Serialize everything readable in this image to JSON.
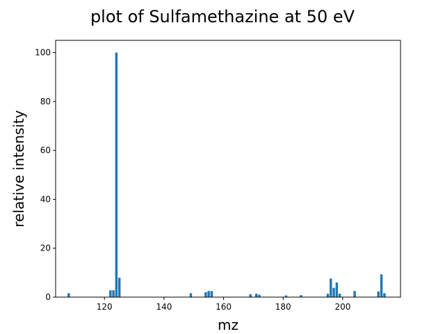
{
  "chart_data": {
    "type": "bar",
    "title": "plot of Sulfamethazine at 50 eV",
    "xlabel": "mz",
    "ylabel": "relative intensity",
    "xlim": [
      103.6,
      219.4
    ],
    "ylim": [
      0,
      105
    ],
    "xticks": [
      "120",
      "140",
      "160",
      "180",
      "200"
    ],
    "yticks": [
      "0",
      "20",
      "40",
      "60",
      "80",
      "100"
    ],
    "bar_color": "#1f77b4",
    "grid": false,
    "series": [
      {
        "x": [
          108,
          122,
          123,
          124,
          125,
          149,
          154,
          155,
          156,
          169,
          171,
          172,
          181,
          186,
          195,
          196,
          197,
          198,
          199,
          204,
          212,
          213,
          214
        ],
        "values": [
          1.6,
          2.8,
          2.8,
          100,
          7.9,
          1.6,
          2.0,
          2.5,
          2.5,
          1.2,
          1.4,
          1.0,
          0.7,
          0.8,
          1.4,
          7.6,
          3.8,
          6.0,
          1.4,
          2.5,
          2.3,
          9.3,
          1.6
        ]
      }
    ]
  }
}
